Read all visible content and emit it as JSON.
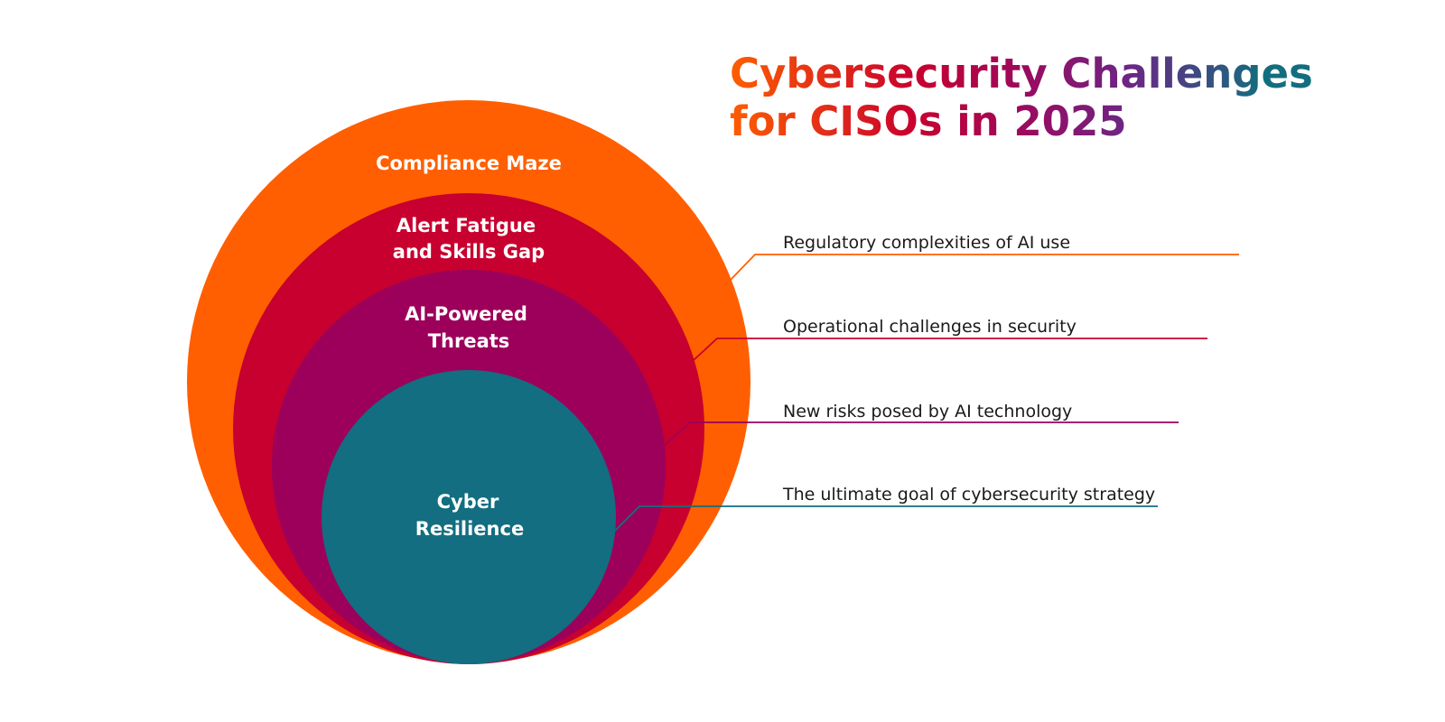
{
  "title": {
    "line1": "Cybersecurity Challenges",
    "line2": "for CISOs in 2025"
  },
  "colors": {
    "gradient_start": "#FF5F00",
    "gradient_mid": "#C8002E",
    "gradient_mid2": "#9B0A5E",
    "gradient_mid3": "#6B2685",
    "gradient_end": "#126E7E",
    "compliance": "#FF5F00",
    "alert": "#C7002F",
    "threats": "#9C005A",
    "resilience": "#126E80"
  },
  "layers": [
    {
      "id": "compliance",
      "label_lines": [
        "Compliance Maze"
      ],
      "callout": "Regulatory complexities of AI use"
    },
    {
      "id": "alert",
      "label_lines": [
        "Alert Fatigue",
        "and Skills Gap"
      ],
      "callout": "Operational challenges in security"
    },
    {
      "id": "threats",
      "label_lines": [
        "AI-Powered",
        "Threats"
      ],
      "callout": "New risks posed by AI technology"
    },
    {
      "id": "resilience",
      "label_lines": [
        "Cyber",
        "Resilience"
      ],
      "callout": "The ultimate goal of cybersecurity strategy"
    }
  ]
}
